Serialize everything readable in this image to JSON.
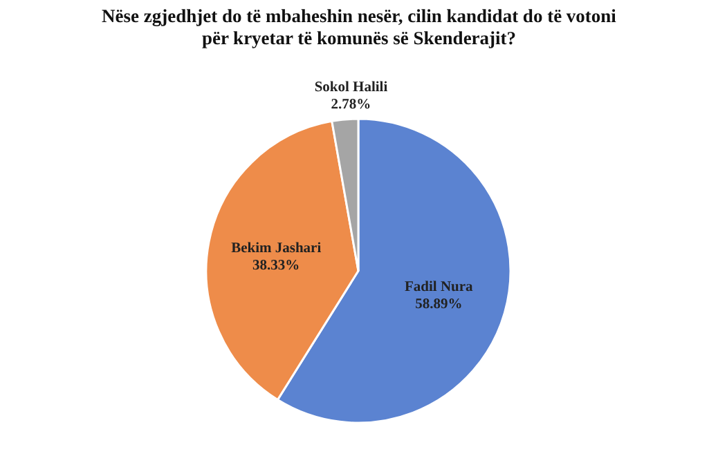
{
  "chart_data": {
    "type": "pie",
    "title": "Nëse zgjedhjet do të mbaheshin nesër, cilin kandidat do të votoni për kryetar të komunës së Skenderajit?",
    "categories": [
      "Fadil  Nura",
      "Bekim Jashari",
      "Sokol Halili"
    ],
    "values": [
      58.89,
      38.33,
      2.78
    ],
    "colors": [
      "#5b83d1",
      "#ee8c4a",
      "#a5a5a5"
    ],
    "value_labels": [
      "58.89%",
      "38.33%",
      "2.78%"
    ]
  }
}
